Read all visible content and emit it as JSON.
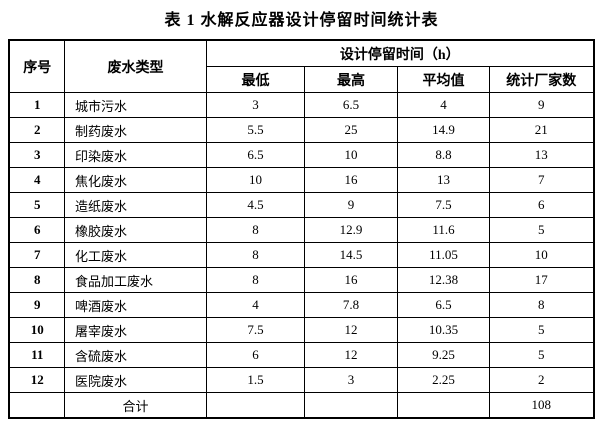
{
  "title": "表 1  水解反应器设计停留时间统计表",
  "table": {
    "headers": {
      "serial": "序号",
      "type": "废水类型",
      "group": "设计停留时间（h）",
      "min": "最低",
      "max": "最高",
      "avg": "平均值",
      "count": "统计厂家数"
    },
    "rows": [
      {
        "no": "1",
        "type": "城市污水",
        "min": "3",
        "max": "6.5",
        "avg": "4",
        "count": "9"
      },
      {
        "no": "2",
        "type": "制药废水",
        "min": "5.5",
        "max": "25",
        "avg": "14.9",
        "count": "21"
      },
      {
        "no": "3",
        "type": "印染废水",
        "min": "6.5",
        "max": "10",
        "avg": "8.8",
        "count": "13"
      },
      {
        "no": "4",
        "type": "焦化废水",
        "min": "10",
        "max": "16",
        "avg": "13",
        "count": "7"
      },
      {
        "no": "5",
        "type": "造纸废水",
        "min": "4.5",
        "max": "9",
        "avg": "7.5",
        "count": "6"
      },
      {
        "no": "6",
        "type": "橡胶废水",
        "min": "8",
        "max": "12.9",
        "avg": "11.6",
        "count": "5"
      },
      {
        "no": "7",
        "type": "化工废水",
        "min": "8",
        "max": "14.5",
        "avg": "11.05",
        "count": "10"
      },
      {
        "no": "8",
        "type": "食品加工废水",
        "min": "8",
        "max": "16",
        "avg": "12.38",
        "count": "17"
      },
      {
        "no": "9",
        "type": "啤酒废水",
        "min": "4",
        "max": "7.8",
        "avg": "6.5",
        "count": "8"
      },
      {
        "no": "10",
        "type": "屠宰废水",
        "min": "7.5",
        "max": "12",
        "avg": "10.35",
        "count": "5"
      },
      {
        "no": "11",
        "type": "含硫废水",
        "min": "6",
        "max": "12",
        "avg": "9.25",
        "count": "5"
      },
      {
        "no": "12",
        "type": "医院废水",
        "min": "1.5",
        "max": "3",
        "avg": "2.25",
        "count": "2"
      }
    ],
    "summary": {
      "serial": "",
      "label": "合计",
      "min": "",
      "max": "",
      "avg": "",
      "count": "108"
    }
  }
}
